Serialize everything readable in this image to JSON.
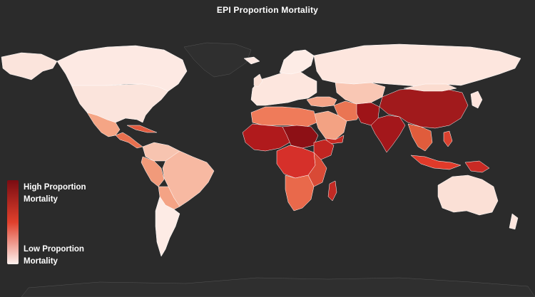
{
  "title": "EPI Proportion Mortality",
  "legend": {
    "high_line1": "High Proportion",
    "high_line2": "Mortality",
    "low_line1": "Low Proportion",
    "low_line2": "Mortality"
  },
  "colors": {
    "background": "#2b2b2b",
    "land_default": "#fbe4dc",
    "scale_high": "#7a0c12",
    "scale_mid": "#e0402c",
    "scale_low": "#fdf2ee",
    "borders": "#ffffff"
  }
}
